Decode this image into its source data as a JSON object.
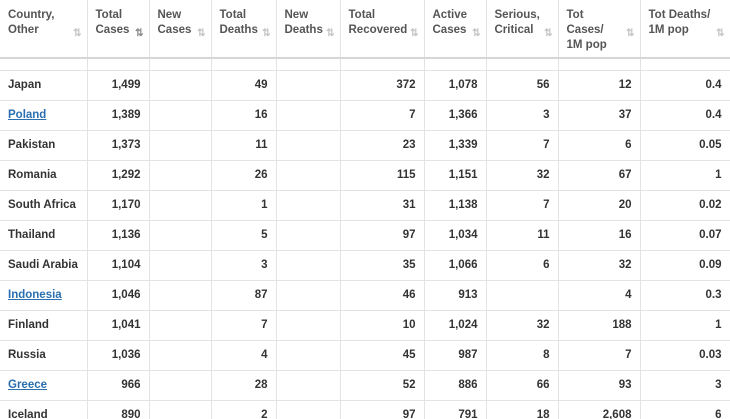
{
  "headers": [
    {
      "line1": "Country,",
      "line2": "Other",
      "sort": "⇅",
      "active": false
    },
    {
      "line1": "Total",
      "line2": "Cases",
      "sort": "⇅",
      "active": true
    },
    {
      "line1": "New",
      "line2": "Cases",
      "sort": "⇅",
      "active": false
    },
    {
      "line1": "Total",
      "line2": "Deaths",
      "sort": "⇅",
      "active": false
    },
    {
      "line1": "New",
      "line2": "Deaths",
      "sort": "⇅",
      "active": false
    },
    {
      "line1": "Total",
      "line2": "Recovered",
      "sort": "⇅",
      "active": false
    },
    {
      "line1": "Active",
      "line2": "Cases",
      "sort": "⇅",
      "active": false
    },
    {
      "line1": "Serious,",
      "line2": "Critical",
      "sort": "⇅",
      "active": false
    },
    {
      "line1": "Tot Cases/",
      "line2": "1M pop",
      "sort": "⇅",
      "active": false
    },
    {
      "line1": "Tot Deaths/",
      "line2": "1M pop",
      "sort": "⇅",
      "active": false
    }
  ],
  "rows": [
    {
      "country": "Japan",
      "link": false,
      "total_cases": "1,499",
      "new_cases": "",
      "total_deaths": "49",
      "new_deaths": "",
      "total_recovered": "372",
      "active_cases": "1,078",
      "serious": "56",
      "cases_per_1m": "12",
      "deaths_per_1m": "0.4"
    },
    {
      "country": "Poland",
      "link": true,
      "total_cases": "1,389",
      "new_cases": "",
      "total_deaths": "16",
      "new_deaths": "",
      "total_recovered": "7",
      "active_cases": "1,366",
      "serious": "3",
      "cases_per_1m": "37",
      "deaths_per_1m": "0.4"
    },
    {
      "country": "Pakistan",
      "link": false,
      "total_cases": "1,373",
      "new_cases": "",
      "total_deaths": "11",
      "new_deaths": "",
      "total_recovered": "23",
      "active_cases": "1,339",
      "serious": "7",
      "cases_per_1m": "6",
      "deaths_per_1m": "0.05"
    },
    {
      "country": "Romania",
      "link": false,
      "total_cases": "1,292",
      "new_cases": "",
      "total_deaths": "26",
      "new_deaths": "",
      "total_recovered": "115",
      "active_cases": "1,151",
      "serious": "32",
      "cases_per_1m": "67",
      "deaths_per_1m": "1"
    },
    {
      "country": "South Africa",
      "link": false,
      "total_cases": "1,170",
      "new_cases": "",
      "total_deaths": "1",
      "new_deaths": "",
      "total_recovered": "31",
      "active_cases": "1,138",
      "serious": "7",
      "cases_per_1m": "20",
      "deaths_per_1m": "0.02"
    },
    {
      "country": "Thailand",
      "link": false,
      "total_cases": "1,136",
      "new_cases": "",
      "total_deaths": "5",
      "new_deaths": "",
      "total_recovered": "97",
      "active_cases": "1,034",
      "serious": "11",
      "cases_per_1m": "16",
      "deaths_per_1m": "0.07"
    },
    {
      "country": "Saudi Arabia",
      "link": false,
      "total_cases": "1,104",
      "new_cases": "",
      "total_deaths": "3",
      "new_deaths": "",
      "total_recovered": "35",
      "active_cases": "1,066",
      "serious": "6",
      "cases_per_1m": "32",
      "deaths_per_1m": "0.09"
    },
    {
      "country": "Indonesia",
      "link": true,
      "total_cases": "1,046",
      "new_cases": "",
      "total_deaths": "87",
      "new_deaths": "",
      "total_recovered": "46",
      "active_cases": "913",
      "serious": "",
      "cases_per_1m": "4",
      "deaths_per_1m": "0.3"
    },
    {
      "country": "Finland",
      "link": false,
      "total_cases": "1,041",
      "new_cases": "",
      "total_deaths": "7",
      "new_deaths": "",
      "total_recovered": "10",
      "active_cases": "1,024",
      "serious": "32",
      "cases_per_1m": "188",
      "deaths_per_1m": "1"
    },
    {
      "country": "Russia",
      "link": false,
      "total_cases": "1,036",
      "new_cases": "",
      "total_deaths": "4",
      "new_deaths": "",
      "total_recovered": "45",
      "active_cases": "987",
      "serious": "8",
      "cases_per_1m": "7",
      "deaths_per_1m": "0.03"
    },
    {
      "country": "Greece",
      "link": true,
      "total_cases": "966",
      "new_cases": "",
      "total_deaths": "28",
      "new_deaths": "",
      "total_recovered": "52",
      "active_cases": "886",
      "serious": "66",
      "cases_per_1m": "93",
      "deaths_per_1m": "3"
    },
    {
      "country": "Iceland",
      "link": false,
      "total_cases": "890",
      "new_cases": "",
      "total_deaths": "2",
      "new_deaths": "",
      "total_recovered": "97",
      "active_cases": "791",
      "serious": "18",
      "cases_per_1m": "2,608",
      "deaths_per_1m": "6"
    }
  ],
  "colors": {
    "link": "#2a6fb0",
    "text": "#333333",
    "header_text": "#555555",
    "border": "#e3e3e3"
  }
}
